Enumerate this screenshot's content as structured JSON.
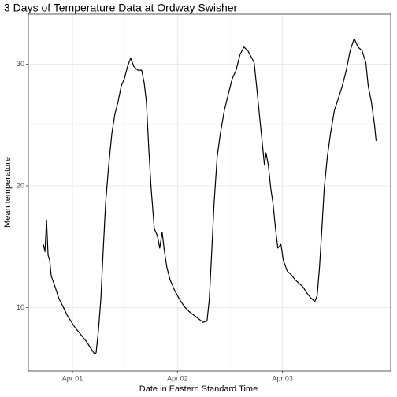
{
  "chart_data": {
    "type": "line",
    "title": "3 Days of Temperature Data at Ordway Swisher",
    "x_label": "Date in Eastern Standard Time",
    "y_label": "Mean temperature",
    "x": [
      -0.277,
      -0.262,
      -0.247,
      -0.232,
      -0.217,
      -0.202,
      -0.165,
      -0.127,
      -0.09,
      -0.052,
      -0.015,
      0.022,
      0.06,
      0.097,
      0.135,
      0.172,
      0.21,
      0.225,
      0.247,
      0.27,
      0.292,
      0.315,
      0.345,
      0.375,
      0.404,
      0.434,
      0.464,
      0.494,
      0.524,
      0.554,
      0.584,
      0.622,
      0.659,
      0.682,
      0.704,
      0.727,
      0.749,
      0.779,
      0.809,
      0.831,
      0.854,
      0.876,
      0.899,
      0.929,
      0.974,
      1.019,
      1.064,
      1.109,
      1.154,
      1.199,
      1.243,
      1.281,
      1.303,
      1.326,
      1.348,
      1.378,
      1.408,
      1.446,
      1.483,
      1.521,
      1.558,
      1.596,
      1.633,
      1.67,
      1.708,
      1.73,
      1.753,
      1.783,
      1.813,
      1.828,
      1.843,
      1.865,
      1.888,
      1.91,
      1.933,
      1.955,
      1.985,
      2.007,
      2.045,
      2.082,
      2.12,
      2.157,
      2.195,
      2.232,
      2.27,
      2.307,
      2.33,
      2.352,
      2.375,
      2.397,
      2.427,
      2.457,
      2.494,
      2.532,
      2.569,
      2.607,
      2.644,
      2.682,
      2.719,
      2.757,
      2.794,
      2.816,
      2.846,
      2.876,
      2.891
    ],
    "series": [
      {
        "name": "Mean temperature",
        "color": "#000000",
        "values": [
          15.2,
          14.6,
          17.2,
          14.3,
          13.9,
          12.6,
          11.7,
          10.7,
          10.1,
          9.4,
          8.9,
          8.4,
          8.0,
          7.6,
          7.2,
          6.7,
          6.2,
          6.3,
          8.1,
          10.7,
          14.6,
          18.5,
          21.7,
          24.3,
          25.9,
          26.9,
          28.2,
          28.8,
          29.8,
          30.5,
          29.8,
          29.5,
          29.5,
          28.5,
          26.9,
          23.0,
          19.8,
          16.5,
          15.9,
          14.9,
          16.2,
          14.6,
          13.3,
          12.3,
          11.4,
          10.7,
          10.1,
          9.7,
          9.4,
          9.1,
          8.8,
          8.9,
          10.7,
          14.6,
          18.5,
          22.4,
          24.3,
          26.2,
          27.5,
          28.8,
          29.5,
          30.8,
          31.4,
          31.1,
          30.5,
          30.1,
          28.2,
          25.6,
          23.0,
          21.7,
          22.7,
          21.7,
          19.8,
          18.5,
          16.5,
          14.9,
          15.2,
          13.9,
          13.0,
          12.7,
          12.3,
          12.0,
          11.7,
          11.2,
          10.8,
          10.5,
          11.0,
          13.3,
          16.5,
          19.8,
          22.4,
          24.3,
          26.2,
          27.2,
          28.2,
          29.5,
          31.1,
          32.1,
          31.4,
          31.1,
          30.1,
          28.2,
          26.9,
          25.0,
          23.7
        ]
      }
    ],
    "xlim": [
      -0.42,
      3.03
    ],
    "xticks": [
      {
        "value": 0,
        "label": "Apr 01"
      },
      {
        "value": 1,
        "label": "Apr 02"
      },
      {
        "value": 2,
        "label": "Apr 03"
      }
    ],
    "ylim": [
      4.8,
      34.1
    ],
    "yticks": [
      10,
      20,
      30
    ],
    "grid": true
  }
}
